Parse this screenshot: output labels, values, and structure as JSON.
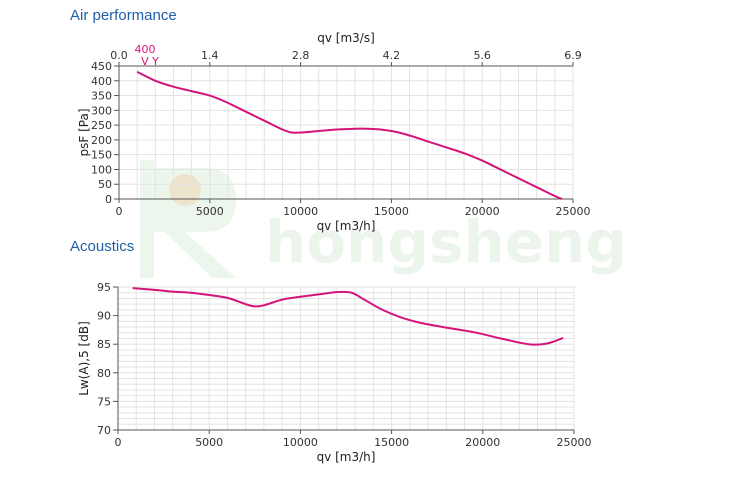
{
  "sections": {
    "air": "Air performance",
    "acoustics": "Acoustics"
  },
  "watermark": {
    "text": "hongsheng",
    "color": "#7fc27f"
  },
  "colors": {
    "curve": "#d4147a",
    "grid": "#e3e3e3",
    "axis": "#555555"
  },
  "chart_data": [
    {
      "type": "line",
      "title": "Air performance",
      "xlabel": "qv [m3/h]",
      "ylabel": "psF [Pa]",
      "x_top_label": "qv [m3/s]",
      "xlim": [
        0,
        25000
      ],
      "ylim": [
        0,
        450
      ],
      "x_ticks": [
        "0",
        "5000",
        "10000",
        "15000",
        "20000",
        "25000"
      ],
      "x_top_ticks": [
        "0.0",
        "1.4",
        "2.8",
        "4.2",
        "5.6",
        "6.9"
      ],
      "y_ticks": [
        "0",
        "50",
        "100",
        "150",
        "200",
        "250",
        "300",
        "350",
        "400",
        "450"
      ],
      "operating_point": {
        "label": "400",
        "markers": "V Y"
      },
      "grid": true,
      "series": [
        {
          "x": [
            1000,
            2000,
            3000,
            4000,
            5000,
            6000,
            7000,
            8000,
            9000,
            9500,
            10000,
            11000,
            12000,
            13000,
            14000,
            15000,
            16000,
            17000,
            18000,
            19000,
            20000,
            21000,
            22000,
            23000,
            24000,
            24400
          ],
          "y": [
            430,
            400,
            380,
            365,
            350,
            325,
            295,
            265,
            235,
            225,
            225,
            230,
            235,
            238,
            237,
            230,
            215,
            195,
            175,
            155,
            130,
            100,
            70,
            40,
            10,
            0
          ]
        }
      ]
    },
    {
      "type": "line",
      "title": "Acoustics",
      "xlabel": "qv [m3/h]",
      "ylabel": "Lw(A),5 [dB]",
      "xlim": [
        0,
        25000
      ],
      "ylim": [
        70,
        95
      ],
      "x_ticks": [
        "0",
        "5000",
        "10000",
        "15000",
        "20000",
        "25000"
      ],
      "y_ticks": [
        "70",
        "75",
        "80",
        "85",
        "90",
        "95"
      ],
      "grid": true,
      "series": [
        {
          "x": [
            800,
            2000,
            3000,
            4000,
            5000,
            6000,
            7000,
            7500,
            8000,
            9000,
            10000,
            11000,
            12000,
            12800,
            13500,
            14500,
            15500,
            16500,
            18000,
            19500,
            21000,
            22500,
            23500,
            24400
          ],
          "y": [
            94.8,
            94.5,
            94.2,
            94.0,
            93.6,
            93.1,
            92.0,
            91.6,
            91.8,
            92.8,
            93.3,
            93.7,
            94.1,
            94.0,
            92.8,
            91.0,
            89.7,
            88.8,
            87.9,
            87.1,
            86.0,
            85.0,
            85.1,
            86.1
          ]
        }
      ]
    }
  ]
}
